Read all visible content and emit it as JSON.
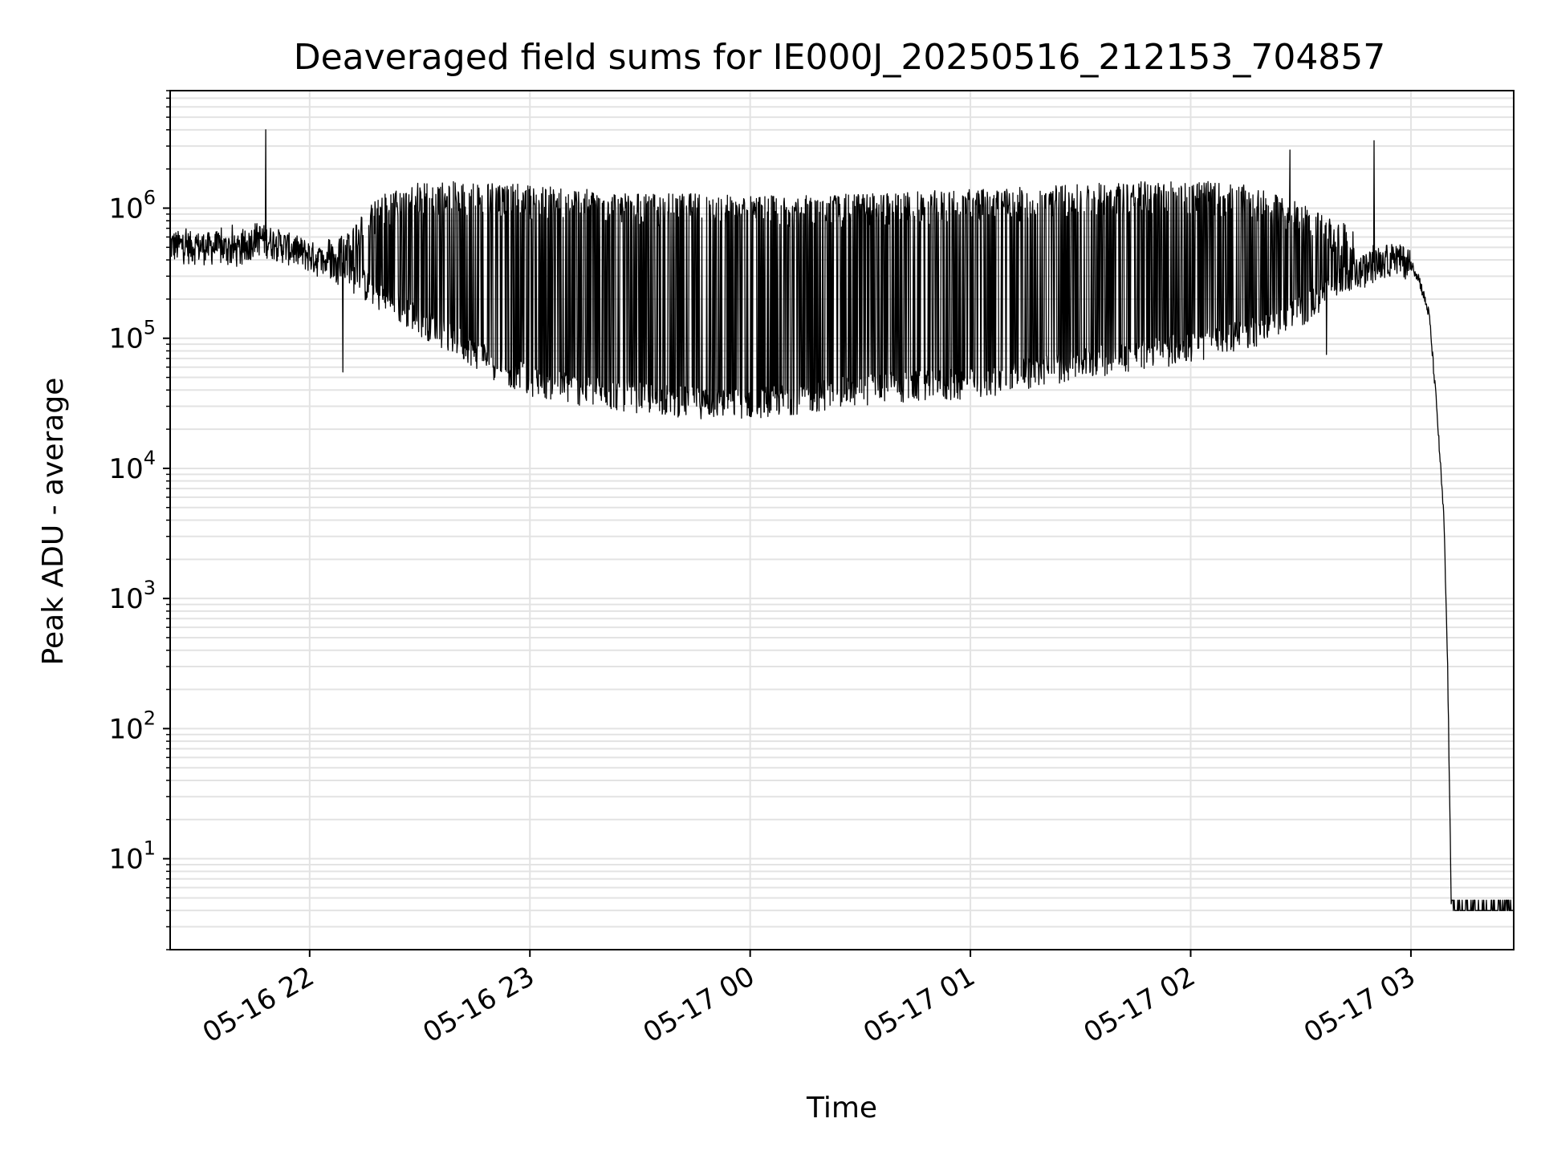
{
  "chart_data": {
    "type": "line",
    "title": "Deaveraged field sums for IE000J_20250516_212153_704857",
    "xlabel": "Time",
    "ylabel": "Peak ADU - average",
    "y_scale": "log",
    "grid": true,
    "x_range": [
      "05-16 21:22",
      "05-17 03:28"
    ],
    "ylim": [
      2,
      8000000
    ],
    "x_ticks": [
      "05-16 22",
      "05-16 23",
      "05-17 00",
      "05-17 01",
      "05-17 02",
      "05-17 03"
    ],
    "y_ticks": [
      {
        "base": "10",
        "exp": "1",
        "value": 10
      },
      {
        "base": "10",
        "exp": "2",
        "value": 100
      },
      {
        "base": "10",
        "exp": "3",
        "value": 1000
      },
      {
        "base": "10",
        "exp": "4",
        "value": 10000
      },
      {
        "base": "10",
        "exp": "5",
        "value": 100000
      },
      {
        "base": "10",
        "exp": "6",
        "value": 1000000
      }
    ],
    "line_color": "#000000",
    "series": [
      {
        "x": [
          "05-16 21:22",
          "05-16 21:35",
          "05-16 21:42",
          "05-16 21:45",
          "05-16 21:50",
          "05-16 22:00",
          "05-16 22:10",
          "05-16 22:20",
          "05-16 22:30",
          "05-16 22:40",
          "05-16 22:50",
          "05-16 23:00",
          "05-16 23:15",
          "05-16 23:30",
          "05-16 23:45",
          "05-17 00:00",
          "05-17 00:15",
          "05-17 00:30",
          "05-17 00:45",
          "05-17 01:00",
          "05-17 01:15",
          "05-17 01:30",
          "05-17 01:45",
          "05-17 02:00",
          "05-17 02:15",
          "05-17 02:30",
          "05-17 02:40",
          "05-17 02:50",
          "05-17 02:55",
          "05-17 03:00",
          "05-17 03:02",
          "05-17 03:05",
          "05-17 03:07",
          "05-17 03:09",
          "05-17 03:10",
          "05-17 03:11",
          "05-17 03:28"
        ],
        "baseline": [
          500000,
          480000,
          450000,
          580000,
          530000,
          420000,
          300000,
          190000,
          130000,
          90000,
          60000,
          45000,
          37000,
          33000,
          30000,
          30000,
          33000,
          38000,
          40000,
          42000,
          50000,
          60000,
          70000,
          80000,
          100000,
          150000,
          250000,
          360000,
          400000,
          370000,
          300000,
          150000,
          30000,
          4000,
          300,
          4,
          4
        ],
        "peak": [
          800000,
          800000,
          700000,
          700000,
          650000,
          500000,
          700000,
          1300000,
          1600000,
          1600000,
          1600000,
          1500000,
          1400000,
          1300000,
          1300000,
          1250000,
          1250000,
          1300000,
          1350000,
          1400000,
          1450000,
          1550000,
          1600000,
          1650000,
          1500000,
          1100000,
          800000,
          600000,
          500000,
          420000,
          null,
          null,
          null,
          null,
          null,
          null,
          null
        ]
      }
    ],
    "spikes": [
      {
        "x": "05-16 21:48",
        "y": 4000000
      },
      {
        "x": "05-17 02:27",
        "y": 2800000
      },
      {
        "x": "05-17 02:50",
        "y": 3300000
      }
    ],
    "dips": [
      {
        "x": "05-16 22:09",
        "y": 55000
      },
      {
        "x": "05-17 02:37",
        "y": 75000
      }
    ]
  }
}
